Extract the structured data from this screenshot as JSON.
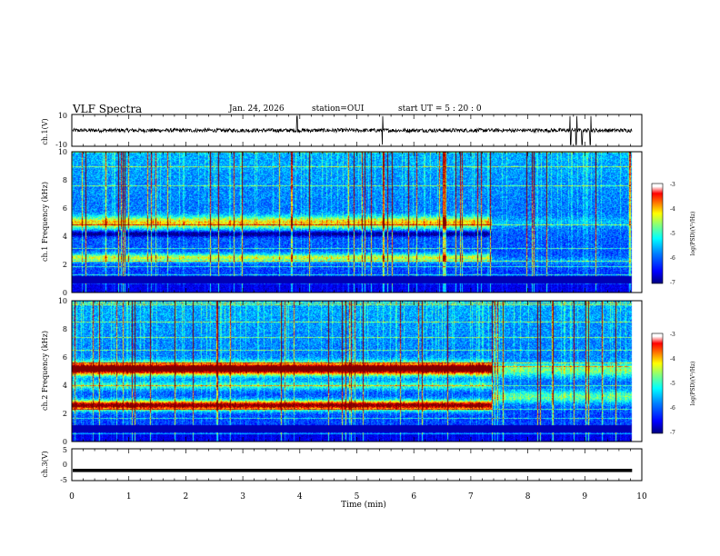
{
  "header": {
    "title": "VLF Spectra",
    "date": "Jan. 24, 2026",
    "station": "station=OUI",
    "start": "start UT =  5 : 20 : 0"
  },
  "colors": {
    "colormap": [
      "#00007f",
      "#0000ff",
      "#0080ff",
      "#00ffff",
      "#80ff80",
      "#ffff00",
      "#ff8000",
      "#ff0000",
      "#7f0000",
      "#ffffff"
    ],
    "trace": "#000000",
    "axis": "#000000"
  },
  "chart_data": [
    {
      "type": "line",
      "name": "ch1-waveform",
      "ylabel": "ch.1(V)",
      "ylim": [
        -10,
        10
      ],
      "yticks": [
        "10",
        "-10"
      ],
      "xlim": [
        0,
        10
      ],
      "baseline": 0,
      "noise_amplitude": 1.2,
      "spikes_at_min": [
        8.75,
        8.85,
        8.95,
        9.1,
        5.45,
        3.95
      ]
    },
    {
      "type": "heatmap",
      "name": "ch1-spectrogram",
      "ylabel": "ch.1 Frequency (kHz)",
      "ylim": [
        0,
        10
      ],
      "yticks": [
        "0",
        "2",
        "4",
        "6",
        "8",
        "10"
      ],
      "xlim": [
        0,
        10
      ],
      "data_end_min": 9.83,
      "change_at_min": 7.37,
      "bands_before": [
        {
          "f": 5.0,
          "w": 0.45,
          "level": 0.45
        },
        {
          "f": 2.5,
          "w": 0.3,
          "level": 0.42
        },
        {
          "f": 4.2,
          "w": 0.2,
          "level": -0.3
        }
      ],
      "bands_after": [
        {
          "f": 5.0,
          "w": 0.4,
          "level": 0.1
        },
        {
          "f": 2.3,
          "w": 0.3,
          "level": 0.1
        }
      ],
      "colorbar": {
        "label": "log(PSD)(V²/Hz)",
        "ticks": [
          "-3",
          "-4",
          "-5",
          "-6",
          "-7"
        ],
        "range": [
          -7,
          -3
        ]
      }
    },
    {
      "type": "heatmap",
      "name": "ch2-spectrogram",
      "ylabel": "ch.2 Frequency (kHz)",
      "ylim": [
        0,
        10
      ],
      "yticks": [
        "0",
        "2",
        "4",
        "6",
        "8",
        "10"
      ],
      "xlim": [
        0,
        10
      ],
      "data_end_min": 9.83,
      "change_at_min": 7.37,
      "bands_before": [
        {
          "f": 5.2,
          "w": 0.45,
          "level": 0.85
        },
        {
          "f": 2.6,
          "w": 0.35,
          "level": 0.8
        },
        {
          "f": 4.0,
          "w": 0.3,
          "level": 0.25
        }
      ],
      "bands_after": [
        {
          "f": 5.1,
          "w": 0.5,
          "level": 0.3
        },
        {
          "f": 3.2,
          "w": 0.5,
          "level": 0.3
        }
      ],
      "colorbar": {
        "label": "log(PSD)(V²/Hz)",
        "ticks": [
          "-3",
          "-4",
          "-5",
          "-6",
          "-7"
        ],
        "range": [
          -7,
          -3
        ]
      }
    },
    {
      "type": "line",
      "name": "ch3-trace",
      "ylabel": "ch.3(V)",
      "ylim": [
        -5,
        5
      ],
      "yticks": [
        "5",
        "0",
        "-5"
      ],
      "xlim": [
        0,
        10
      ],
      "value": -1.8
    }
  ],
  "xaxis": {
    "label": "Time (min)",
    "ticks": [
      "0",
      "1",
      "2",
      "3",
      "4",
      "5",
      "6",
      "7",
      "8",
      "9",
      "10"
    ]
  }
}
